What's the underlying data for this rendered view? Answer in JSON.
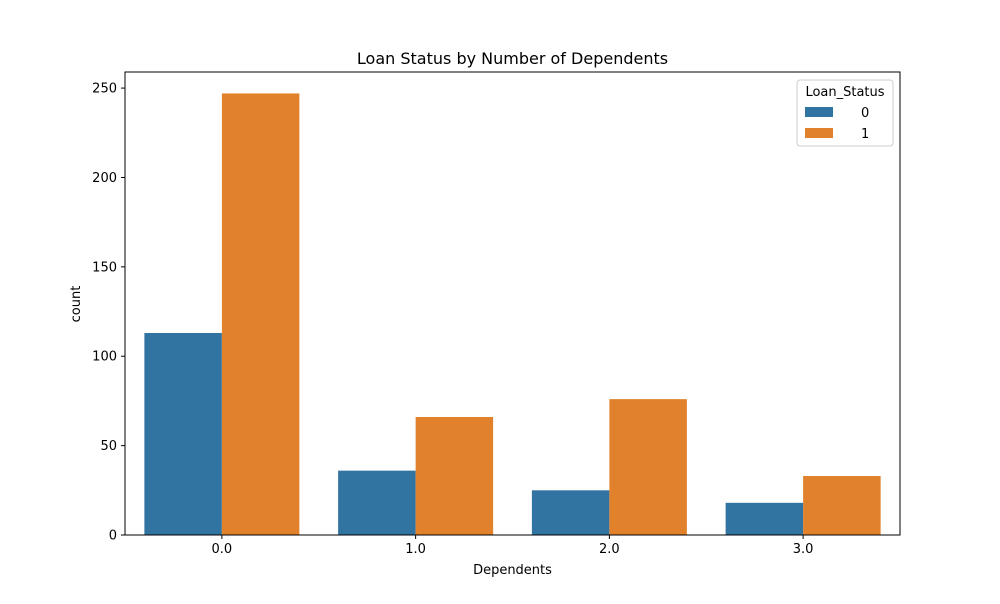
{
  "chart_data": {
    "type": "bar",
    "title": "Loan Status by Number of Dependents",
    "xlabel": "Dependents",
    "ylabel": "count",
    "categories": [
      "0.0",
      "1.0",
      "2.0",
      "3.0"
    ],
    "series": [
      {
        "name": "0",
        "values": [
          113,
          36,
          25,
          18
        ],
        "color": "#3274a1"
      },
      {
        "name": "1",
        "values": [
          247,
          66,
          76,
          33
        ],
        "color": "#e1812c"
      }
    ],
    "ylim": [
      0,
      259
    ],
    "yticks": [
      0,
      50,
      100,
      150,
      200,
      250
    ],
    "grid": false,
    "legend": {
      "title": "Loan_Status",
      "placement": "top-right"
    }
  }
}
